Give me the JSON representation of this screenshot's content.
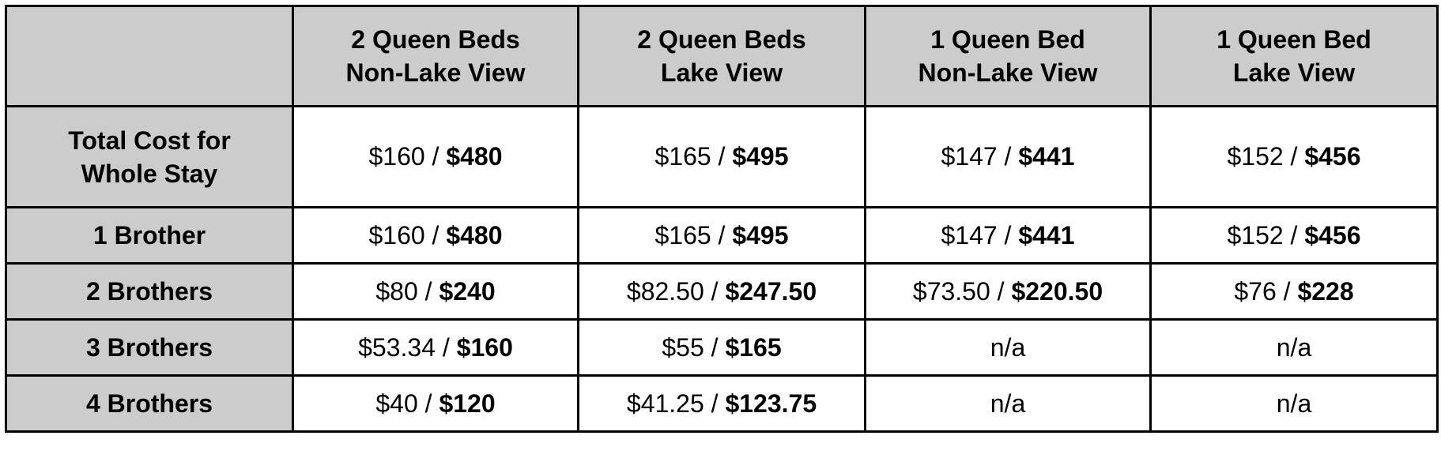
{
  "table": {
    "columns": [
      "",
      "2 Queen Beds\nNon-Lake View",
      "2 Queen Beds\nLake View",
      "1 Queen Bed\nNon-Lake View",
      "1 Queen Bed\nLake View"
    ],
    "column_lines": [
      [
        "",
        ""
      ],
      [
        "2 Queen Beds",
        "Non-Lake View"
      ],
      [
        "2 Queen Beds",
        "Lake View"
      ],
      [
        "1 Queen Bed",
        "Non-Lake View"
      ],
      [
        "1 Queen Bed",
        "Lake View"
      ]
    ],
    "rows": [
      {
        "label_lines": [
          "Total Cost for",
          "Whole Stay"
        ],
        "cells": [
          {
            "per": "$160",
            "total": "$480"
          },
          {
            "per": "$165",
            "total": "$495"
          },
          {
            "per": "$147",
            "total": "$441"
          },
          {
            "per": "$152",
            "total": "$456"
          }
        ]
      },
      {
        "label_lines": [
          "1 Brother",
          ""
        ],
        "cells": [
          {
            "per": "$160",
            "total": "$480"
          },
          {
            "per": "$165",
            "total": "$495"
          },
          {
            "per": "$147",
            "total": "$441"
          },
          {
            "per": "$152",
            "total": "$456"
          }
        ]
      },
      {
        "label_lines": [
          "2 Brothers",
          ""
        ],
        "cells": [
          {
            "per": "$80",
            "total": "$240"
          },
          {
            "per": "$82.50",
            "total": "$247.50"
          },
          {
            "per": "$73.50",
            "total": "$220.50"
          },
          {
            "per": "$76",
            "total": "$228"
          }
        ]
      },
      {
        "label_lines": [
          "3 Brothers",
          ""
        ],
        "cells": [
          {
            "per": "$53.34",
            "total": "$160"
          },
          {
            "per": "$55",
            "total": "$165"
          },
          {
            "per": "n/a",
            "total": ""
          },
          {
            "per": "n/a",
            "total": ""
          }
        ]
      },
      {
        "label_lines": [
          "4 Brothers",
          ""
        ],
        "cells": [
          {
            "per": "$40",
            "total": "$120"
          },
          {
            "per": "$41.25",
            "total": "$123.75"
          },
          {
            "per": "n/a",
            "total": ""
          },
          {
            "per": "n/a",
            "total": ""
          }
        ]
      }
    ],
    "separator": " / ",
    "colors": {
      "header_bg": "#cccccc",
      "cell_bg": "#ffffff",
      "border": "#000000"
    }
  }
}
